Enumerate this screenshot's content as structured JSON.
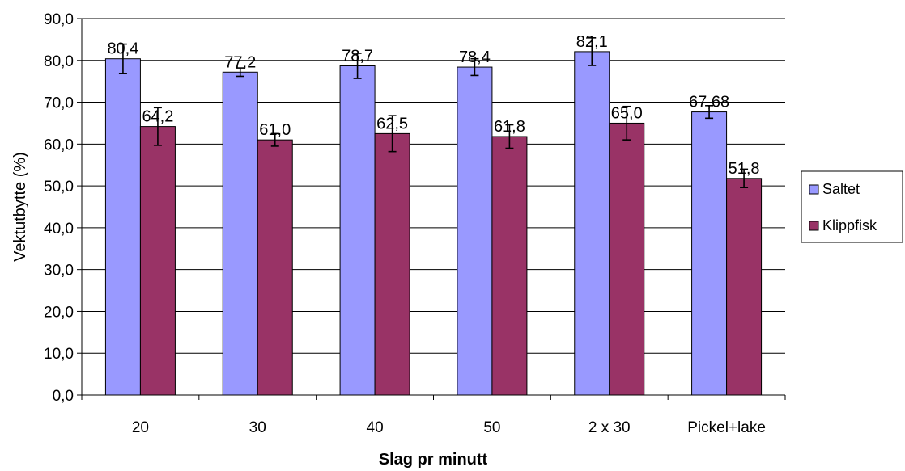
{
  "chart_data": {
    "type": "bar",
    "title": "",
    "xlabel": "Slag pr minutt",
    "ylabel": "Vektutbytte (%)",
    "ylim": [
      0,
      90
    ],
    "ytick_step": 10,
    "ytick_labels": [
      "0,0",
      "10,0",
      "20,0",
      "30,0",
      "40,0",
      "50,0",
      "60,0",
      "70,0",
      "80,0",
      "90,0"
    ],
    "grid": true,
    "legend_position": "right",
    "categories": [
      "20",
      "30",
      "40",
      "50",
      "2 x 30",
      "Pickel+lake"
    ],
    "series": [
      {
        "name": "Saltet",
        "color": "#9999ff",
        "values": [
          80.4,
          77.2,
          78.7,
          78.4,
          82.1,
          67.68
        ],
        "labels": [
          "80,4",
          "77,2",
          "78,7",
          "78,4",
          "82,1",
          "67,68"
        ],
        "errors": [
          3.5,
          1.0,
          3.0,
          2.0,
          3.3,
          1.5
        ]
      },
      {
        "name": "Klippfisk",
        "color": "#993366",
        "values": [
          64.2,
          61.0,
          62.5,
          61.8,
          65.0,
          51.8
        ],
        "labels": [
          "64,2",
          "61,0",
          "62,5",
          "61,8",
          "65,0",
          "51,8"
        ],
        "errors": [
          4.5,
          1.5,
          4.3,
          2.8,
          4.0,
          2.2
        ]
      }
    ]
  }
}
